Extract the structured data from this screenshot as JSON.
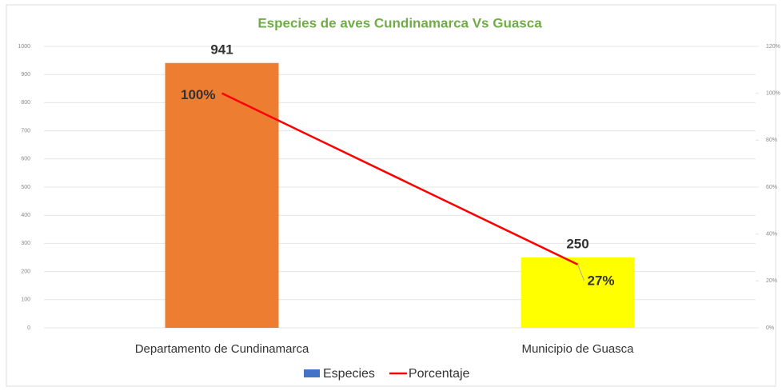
{
  "chart_data": {
    "type": "bar",
    "title": "Especies de aves Cundinamarca Vs Guasca",
    "categories": [
      "Departamento de Cundinamarca",
      "Municipio de Guasca"
    ],
    "series": [
      {
        "name": "Especies",
        "type": "bar",
        "color": "#4472c4",
        "point_colors": [
          "#ed7d31",
          "#ffff00"
        ],
        "values": [
          941,
          250
        ]
      },
      {
        "name": "Porcentaje",
        "type": "line",
        "axis": "y2",
        "color": "#ff0000",
        "values": [
          100,
          27
        ],
        "value_labels": [
          "100%",
          "27%"
        ]
      }
    ],
    "ylim": [
      0,
      1000
    ],
    "yticks": [
      0,
      100,
      200,
      300,
      400,
      500,
      600,
      700,
      800,
      900,
      1000
    ],
    "y2lim": [
      0,
      120
    ],
    "y2ticks": [
      {
        "value": 0,
        "label": "0%"
      },
      {
        "value": 20,
        "label": "20%"
      },
      {
        "value": 40,
        "label": "40%"
      },
      {
        "value": 60,
        "label": "60%"
      },
      {
        "value": 80,
        "label": "80%"
      },
      {
        "value": 100,
        "label": "100%"
      },
      {
        "value": 120,
        "label": "120%"
      }
    ],
    "grid": true,
    "legend": "bottom"
  }
}
